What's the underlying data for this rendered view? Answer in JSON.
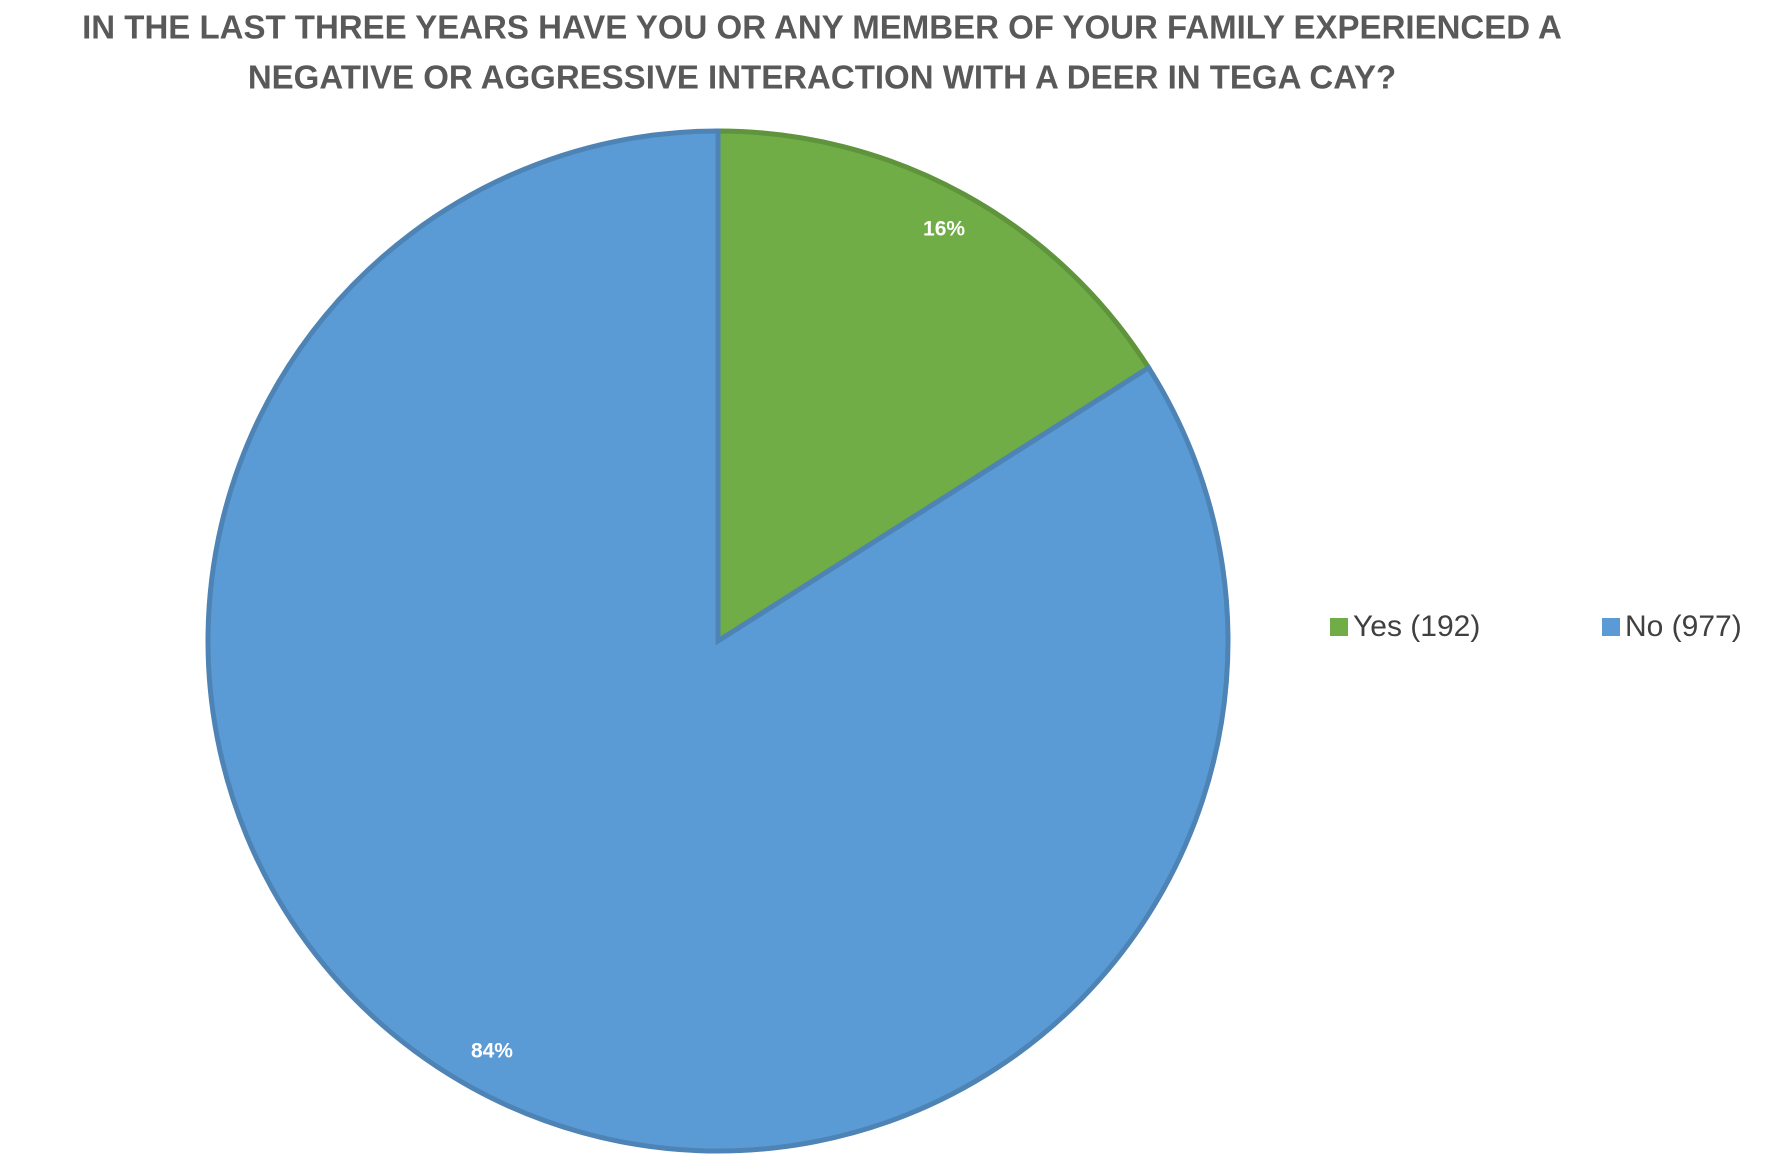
{
  "chart_data": {
    "type": "pie",
    "title": [
      "IN THE LAST THREE YEARS HAVE YOU OR ANY MEMBER OF YOUR FAMILY EXPERIENCED A",
      "NEGATIVE OR AGGRESSIVE INTERACTION WITH A DEER IN TEGA CAY?"
    ],
    "categories": [
      "Yes (192)",
      "No (977)"
    ],
    "values": [
      16,
      84
    ],
    "value_labels": [
      "16%",
      "84%"
    ],
    "colors": [
      "#70ad47",
      "#5b9bd5"
    ],
    "legend": "right"
  }
}
